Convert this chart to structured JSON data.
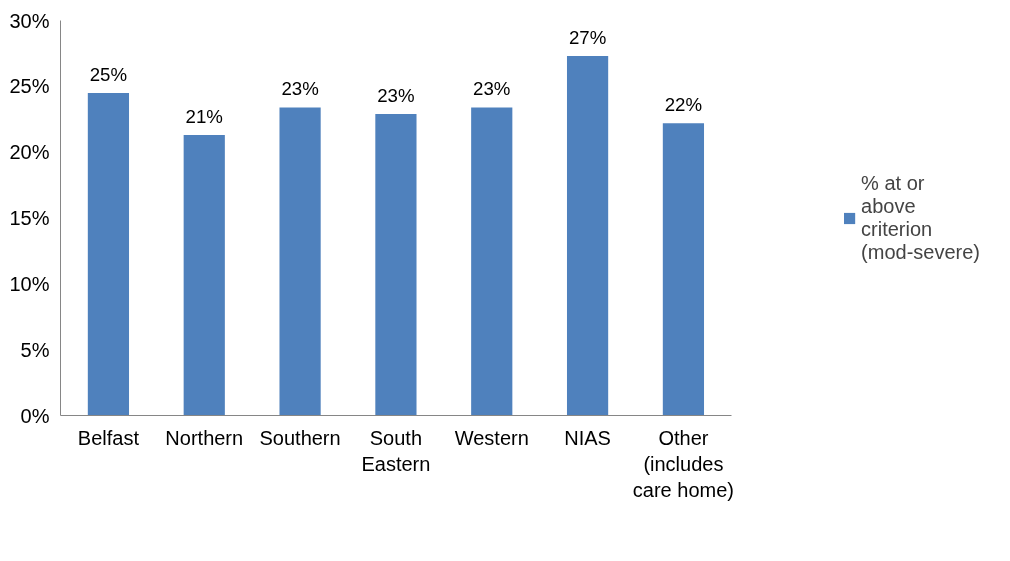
{
  "chart_data": {
    "type": "bar",
    "categories": [
      "Belfast",
      "Northern",
      "Southern",
      "South Eastern",
      "Western",
      "NIAS",
      "Other (includes care home)"
    ],
    "series": [
      {
        "name": "% at or above criterion (mod-severe)",
        "color": "#4f81bd",
        "values": [
          24.5,
          21.3,
          23.4,
          22.9,
          23.4,
          27.3,
          22.2
        ],
        "value_labels": [
          "25%",
          "21%",
          "23%",
          "23%",
          "23%",
          "27%",
          "22%"
        ]
      }
    ],
    "ylim": [
      0,
      30
    ],
    "yticks": [
      {
        "value": 0,
        "label": "0%"
      },
      {
        "value": 5,
        "label": "5%"
      },
      {
        "value": 10,
        "label": "10%"
      },
      {
        "value": 15,
        "label": "15%"
      },
      {
        "value": 20,
        "label": "20%"
      },
      {
        "value": 25,
        "label": "25%"
      },
      {
        "value": 30,
        "label": "30%"
      }
    ],
    "grid": false,
    "legend": "right"
  }
}
